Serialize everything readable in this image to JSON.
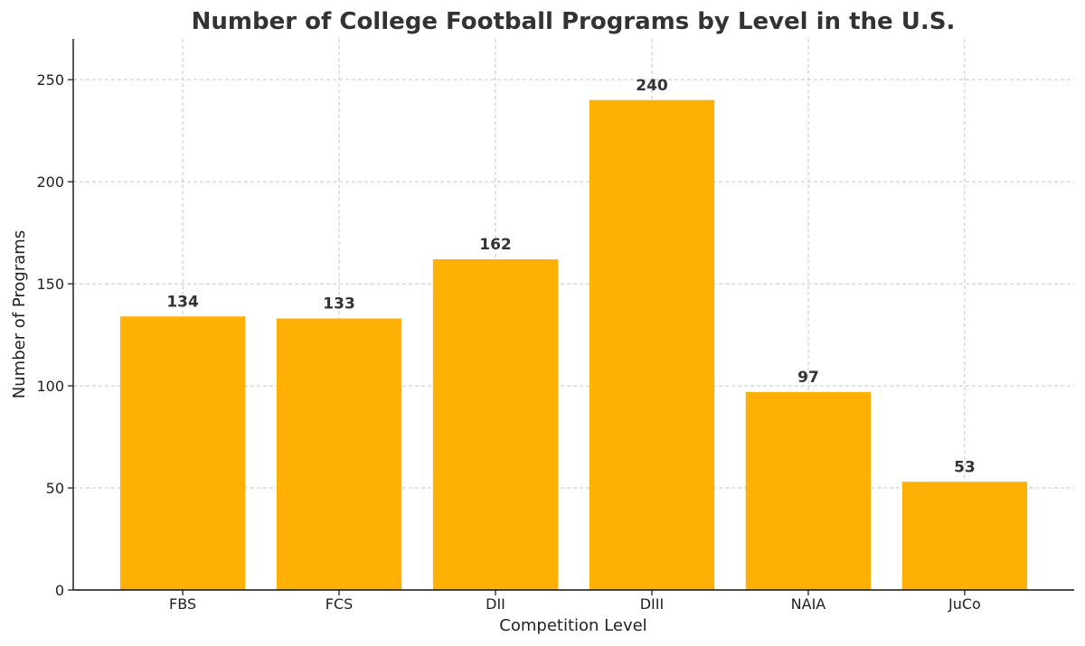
{
  "chart_data": {
    "type": "bar",
    "title": "Number of College Football Programs by Level in the U.S.",
    "xlabel": "Competition Level",
    "ylabel": "Number of Programs",
    "categories": [
      "FBS",
      "FCS",
      "DII",
      "DIII",
      "NAIA",
      "JuCo"
    ],
    "values": [
      134,
      133,
      162,
      240,
      97,
      53
    ],
    "value_labels": [
      "134",
      "133",
      "162",
      "240",
      "97",
      "53"
    ],
    "ylim": [
      0,
      270
    ],
    "yticks": [
      0,
      50,
      100,
      150,
      200,
      250
    ],
    "ytick_labels": [
      "0",
      "50",
      "100",
      "150",
      "200",
      "250"
    ],
    "grid": true,
    "bar_color": "#FFAE00"
  }
}
